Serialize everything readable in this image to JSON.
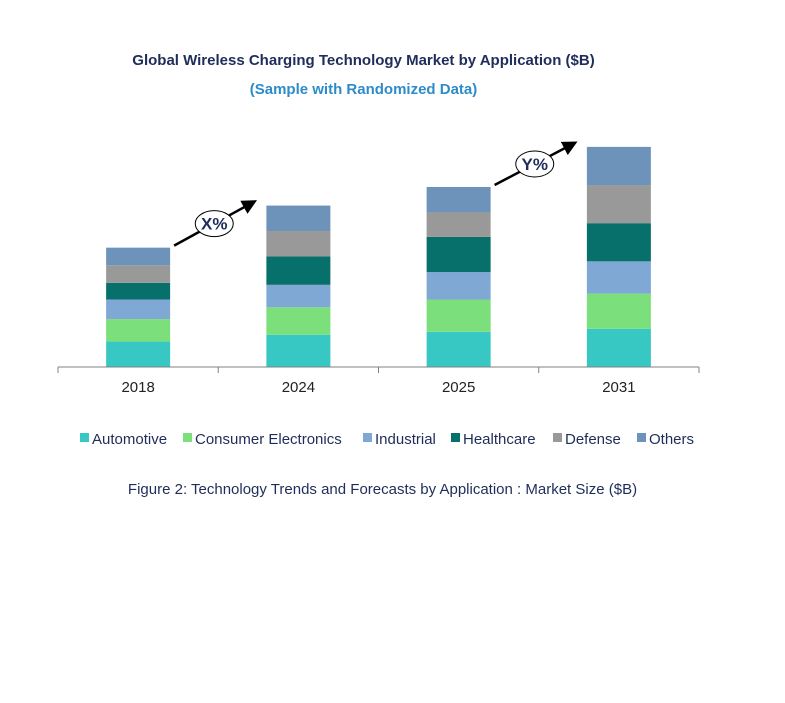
{
  "chart_data": {
    "type": "bar",
    "stacked": true,
    "title": "Global Wireless Charging Technology Market by Application ($B)",
    "subtitle": "(Sample with Randomized Data)",
    "categories": [
      "2018",
      "2024",
      "2025",
      "2031"
    ],
    "series": [
      {
        "name": "Automotive",
        "color": "#38c8c4",
        "values": [
          26,
          33,
          36,
          39
        ]
      },
      {
        "name": "Consumer Electronics",
        "color": "#7be07b",
        "values": [
          23,
          28,
          33,
          36
        ]
      },
      {
        "name": "Industrial",
        "color": "#7fa8d4",
        "values": [
          20,
          23,
          28,
          33
        ]
      },
      {
        "name": "Healthcare",
        "color": "#08706a",
        "values": [
          17,
          29,
          36,
          39
        ]
      },
      {
        "name": "Defense",
        "color": "#999999",
        "values": [
          18,
          26,
          25,
          39
        ]
      },
      {
        "name": "Others",
        "color": "#6e93ba",
        "values": [
          18,
          26,
          26,
          39
        ]
      }
    ],
    "ylim": [
      0,
      230
    ],
    "grid": false,
    "legend_position": "bottom",
    "annotations": [
      {
        "label": "X%",
        "from_category": "2018",
        "to_category": "2024"
      },
      {
        "label": "Y%",
        "from_category": "2025",
        "to_category": "2031"
      }
    ]
  },
  "caption": "Figure 2: Technology  Trends  and Forecasts by Application : Market Size ($B)"
}
